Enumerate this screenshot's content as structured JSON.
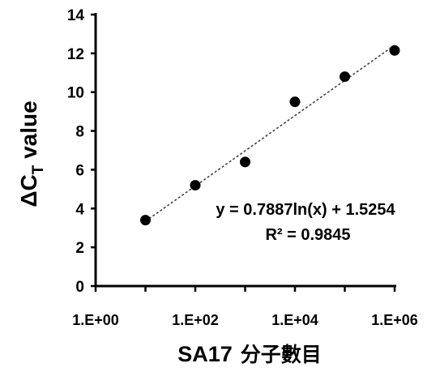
{
  "chart_data": {
    "type": "scatter",
    "x_scale": "log",
    "x": [
      10,
      100,
      1000,
      10000,
      100000,
      1000000
    ],
    "y": [
      3.4,
      5.2,
      6.4,
      9.5,
      10.8,
      12.15
    ],
    "trendline": {
      "kind": "logarithmic",
      "slope": 0.7887,
      "intercept": 1.5254,
      "style": "dashed"
    },
    "equation_text": "y = 0.7887ln(x) + 1.5254",
    "r2_text": "R² = 0.9845",
    "ylabel": {
      "prefix": "ΔC",
      "subscript": "T",
      "suffix": " value"
    },
    "xlabel": {
      "latin": "SA17",
      "cjk": "分子數目"
    },
    "ylim": [
      0,
      14
    ],
    "y_ticks": [
      "0",
      "2",
      "4",
      "6",
      "8",
      "10",
      "12",
      "14"
    ],
    "x_tick_labels": [
      "1.E+00",
      "1.E+02",
      "1.E+04",
      "1.E+06"
    ],
    "grid": false,
    "legend": "none"
  }
}
